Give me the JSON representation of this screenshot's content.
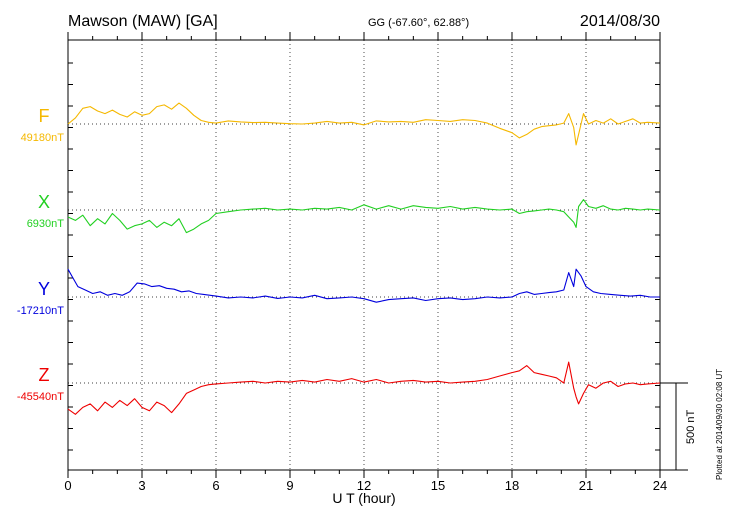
{
  "header": {
    "station": "Mawson (MAW)  [GA]",
    "coords": "GG (-67.60°,  62.88°)",
    "date": "2014/08/30"
  },
  "footer_note": "Plotted at 2014/09/30 02:08 UT",
  "chart_data": {
    "type": "line",
    "xlabel": "U T (hour)",
    "xlim": [
      0,
      24
    ],
    "xticks": [
      "0",
      "3",
      "6",
      "9",
      "12",
      "15",
      "18",
      "21",
      "24"
    ],
    "scale_bar": "500 nT",
    "scale_bar_nT": 500,
    "grid": true,
    "series": [
      {
        "name": "F",
        "baseline_label": "49180nT",
        "color": "#f5b800",
        "x": [
          0,
          0.3,
          0.6,
          0.9,
          1.2,
          1.5,
          1.8,
          2.1,
          2.4,
          2.7,
          3.0,
          3.3,
          3.6,
          3.9,
          4.2,
          4.5,
          4.8,
          5.1,
          5.4,
          5.7,
          6.0,
          6.5,
          7.0,
          7.5,
          8.0,
          8.5,
          9.0,
          9.5,
          10.0,
          10.5,
          11.0,
          11.5,
          12.0,
          12.5,
          13.0,
          13.5,
          14.0,
          14.5,
          15.0,
          15.5,
          16.0,
          16.5,
          17.0,
          17.5,
          18.0,
          18.3,
          18.6,
          18.9,
          19.2,
          19.5,
          19.8,
          20.1,
          20.3,
          20.5,
          20.6,
          20.7,
          20.9,
          21.1,
          21.4,
          21.7,
          22.0,
          22.3,
          22.6,
          22.9,
          23.2,
          23.5,
          24.0
        ],
        "values": [
          0,
          35,
          90,
          100,
          75,
          60,
          80,
          55,
          40,
          70,
          50,
          60,
          100,
          110,
          85,
          120,
          90,
          50,
          20,
          10,
          5,
          18,
          12,
          8,
          10,
          5,
          2,
          0,
          5,
          15,
          5,
          10,
          -5,
          18,
          12,
          15,
          10,
          25,
          20,
          15,
          25,
          20,
          5,
          -25,
          -50,
          -80,
          -60,
          -30,
          -15,
          -10,
          -5,
          5,
          60,
          -20,
          -120,
          -60,
          60,
          0,
          20,
          5,
          30,
          0,
          15,
          30,
          5,
          10,
          5
        ]
      },
      {
        "name": "X",
        "baseline_label": "6930nT",
        "color": "#22d022",
        "x": [
          0,
          0.3,
          0.6,
          0.9,
          1.2,
          1.5,
          1.8,
          2.1,
          2.4,
          2.7,
          3.0,
          3.3,
          3.6,
          3.9,
          4.2,
          4.5,
          4.8,
          5.1,
          5.4,
          5.7,
          6.0,
          6.5,
          7.0,
          7.5,
          8.0,
          8.5,
          9.0,
          9.5,
          10.0,
          10.5,
          11.0,
          11.5,
          12.0,
          12.5,
          13.0,
          13.5,
          14.0,
          14.5,
          15.0,
          15.5,
          16.0,
          16.5,
          17.0,
          17.5,
          18.0,
          18.3,
          18.6,
          18.9,
          19.2,
          19.5,
          19.8,
          20.1,
          20.3,
          20.5,
          20.6,
          20.7,
          20.9,
          21.1,
          21.4,
          21.7,
          22.0,
          22.3,
          22.6,
          22.9,
          23.2,
          23.5,
          24.0
        ],
        "values": [
          -40,
          -60,
          -30,
          -90,
          -50,
          -80,
          -20,
          -60,
          -110,
          -90,
          -80,
          -60,
          -100,
          -70,
          -90,
          -50,
          -130,
          -110,
          -80,
          -60,
          -20,
          -10,
          0,
          5,
          10,
          0,
          5,
          0,
          10,
          5,
          15,
          0,
          30,
          5,
          25,
          5,
          25,
          15,
          10,
          20,
          5,
          15,
          5,
          0,
          5,
          -20,
          -10,
          -5,
          0,
          5,
          0,
          -10,
          -40,
          -70,
          -100,
          20,
          60,
          20,
          10,
          25,
          5,
          0,
          10,
          5,
          0,
          5,
          0
        ]
      },
      {
        "name": "Y",
        "baseline_label": "-17210nT",
        "color": "#0000dd",
        "x": [
          0,
          0.2,
          0.4,
          0.7,
          1.0,
          1.3,
          1.6,
          1.9,
          2.2,
          2.5,
          2.8,
          3.1,
          3.4,
          3.7,
          4.0,
          4.3,
          4.6,
          4.9,
          5.2,
          5.5,
          6.0,
          6.5,
          7.0,
          7.5,
          8.0,
          8.5,
          9.0,
          9.5,
          10.0,
          10.5,
          11.0,
          11.5,
          12.0,
          12.5,
          13.0,
          13.5,
          14.0,
          14.5,
          15.0,
          15.5,
          16.0,
          16.5,
          17.0,
          17.5,
          18.0,
          18.3,
          18.6,
          18.9,
          19.2,
          19.5,
          19.8,
          20.1,
          20.3,
          20.5,
          20.6,
          20.8,
          21.0,
          21.3,
          21.6,
          22.0,
          22.4,
          22.8,
          23.2,
          23.6,
          24.0
        ],
        "values": [
          160,
          110,
          60,
          40,
          20,
          30,
          10,
          20,
          10,
          30,
          80,
          75,
          60,
          65,
          50,
          45,
          30,
          35,
          20,
          15,
          5,
          -5,
          0,
          -5,
          5,
          -8,
          0,
          -5,
          10,
          -10,
          -5,
          0,
          -10,
          -30,
          -15,
          -10,
          -5,
          -20,
          -10,
          -5,
          -15,
          -10,
          0,
          -5,
          0,
          20,
          30,
          15,
          20,
          25,
          30,
          40,
          140,
          60,
          160,
          120,
          60,
          30,
          20,
          15,
          10,
          5,
          10,
          0,
          0
        ]
      },
      {
        "name": "Z",
        "baseline_label": "-45540nT",
        "color": "#ee0000",
        "x": [
          0,
          0.3,
          0.6,
          0.9,
          1.2,
          1.5,
          1.8,
          2.1,
          2.4,
          2.7,
          3.0,
          3.3,
          3.6,
          3.9,
          4.2,
          4.5,
          4.8,
          5.1,
          5.4,
          5.7,
          6.0,
          6.5,
          7.0,
          7.5,
          8.0,
          8.5,
          9.0,
          9.5,
          10.0,
          10.5,
          11.0,
          11.5,
          12.0,
          12.5,
          13.0,
          13.5,
          14.0,
          14.5,
          15.0,
          15.5,
          16.0,
          16.5,
          17.0,
          17.5,
          18.0,
          18.3,
          18.6,
          18.9,
          19.2,
          19.5,
          19.8,
          20.1,
          20.3,
          20.5,
          20.6,
          20.7,
          20.9,
          21.1,
          21.4,
          21.7,
          22.0,
          22.3,
          22.6,
          22.9,
          23.2,
          23.5,
          24.0
        ],
        "values": [
          -150,
          -180,
          -140,
          -120,
          -160,
          -110,
          -140,
          -100,
          -130,
          -90,
          -140,
          -160,
          -110,
          -130,
          -170,
          -120,
          -60,
          -40,
          -20,
          -10,
          -5,
          0,
          5,
          10,
          0,
          10,
          5,
          15,
          5,
          20,
          10,
          25,
          5,
          20,
          0,
          10,
          15,
          5,
          10,
          0,
          5,
          10,
          20,
          40,
          60,
          70,
          100,
          60,
          50,
          40,
          30,
          0,
          120,
          -30,
          -80,
          -120,
          -60,
          -10,
          -30,
          0,
          10,
          -20,
          -5,
          0,
          -10,
          -5,
          0
        ]
      }
    ]
  }
}
